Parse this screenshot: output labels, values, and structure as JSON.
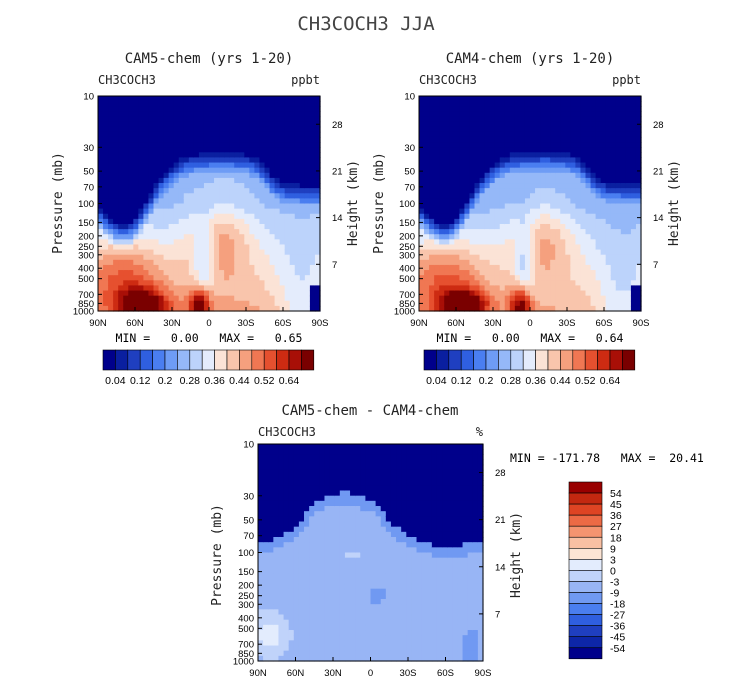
{
  "main_title": "CH3COCH3 JJA",
  "colors": {
    "abs_scale": [
      "#00008b",
      "#0a1fa0",
      "#1f3fc0",
      "#2f5fe0",
      "#4a7ef0",
      "#6e9cf5",
      "#95b8f8",
      "#bcd3fb",
      "#e4ecfc",
      "#fbe3d6",
      "#f9c5ac",
      "#f5a07e",
      "#f07753",
      "#e6502f",
      "#cd2b12",
      "#a80f07",
      "#7a0000"
    ],
    "diff_scale": [
      "#00008b",
      "#0d26a8",
      "#1f3fc0",
      "#2f5fe0",
      "#4a7ef0",
      "#7099f2",
      "#98b5f5",
      "#c0d3fa",
      "#e3ecfd",
      "#fce4d4",
      "#f9c0a3",
      "#f49470",
      "#ec6a45",
      "#de4423",
      "#c32810",
      "#990000"
    ]
  },
  "chart_data": [
    {
      "type": "heatmap",
      "name": "cam5",
      "title": "CAM5-chem (yrs 1-20)",
      "left_label": "CH3COCH3",
      "unit_label": "ppbt",
      "xlabel": "",
      "ylabel": "Pressure (mb)",
      "y2label": "Height (km)",
      "x_ticks": [
        "90N",
        "60N",
        "30N",
        "0",
        "30S",
        "60S",
        "90S"
      ],
      "x_range": [
        90,
        -90
      ],
      "y_ticks": [
        10,
        30,
        50,
        70,
        100,
        150,
        200,
        250,
        300,
        400,
        500,
        700,
        850,
        1000
      ],
      "y_range": [
        1000,
        10
      ],
      "height_ticks": [
        28,
        21,
        14,
        7
      ],
      "stats_label": "MIN =   0.00   MAX =   0.65",
      "min": 0.0,
      "max": 0.65,
      "colorbar_ticks": [
        "0.04",
        "0.12",
        "0.2",
        "0.28",
        "0.36",
        "0.44",
        "0.52",
        "0.64"
      ],
      "levels": [
        0.04,
        0.08,
        0.12,
        0.16,
        0.2,
        0.24,
        0.28,
        0.32,
        0.36,
        0.4,
        0.44,
        0.48,
        0.52,
        0.56,
        0.6,
        0.64
      ]
    },
    {
      "type": "heatmap",
      "name": "cam4",
      "title": "CAM4-chem (yrs 1-20)",
      "left_label": "CH3COCH3",
      "unit_label": "ppbt",
      "xlabel": "",
      "ylabel": "Pressure (mb)",
      "y2label": "Height (km)",
      "x_ticks": [
        "90N",
        "60N",
        "30N",
        "0",
        "30S",
        "60S",
        "90S"
      ],
      "x_range": [
        90,
        -90
      ],
      "y_ticks": [
        10,
        30,
        50,
        70,
        100,
        150,
        200,
        250,
        300,
        400,
        500,
        700,
        850,
        1000
      ],
      "y_range": [
        1000,
        10
      ],
      "height_ticks": [
        28,
        21,
        14,
        7
      ],
      "stats_label": "MIN =   0.00   MAX =   0.64",
      "min": 0.0,
      "max": 0.64,
      "colorbar_ticks": [
        "0.04",
        "0.12",
        "0.2",
        "0.28",
        "0.36",
        "0.44",
        "0.52",
        "0.64"
      ],
      "levels": [
        0.04,
        0.08,
        0.12,
        0.16,
        0.2,
        0.24,
        0.28,
        0.32,
        0.36,
        0.4,
        0.44,
        0.48,
        0.52,
        0.56,
        0.6,
        0.64
      ]
    },
    {
      "type": "heatmap",
      "name": "diff",
      "title": "CAM5-chem - CAM4-chem",
      "left_label": "CH3COCH3",
      "unit_label": "%",
      "xlabel": "",
      "ylabel": "Pressure (mb)",
      "y2label": "Height (km)",
      "x_ticks": [
        "90N",
        "60N",
        "30N",
        "0",
        "30S",
        "60S",
        "90S"
      ],
      "x_range": [
        90,
        -90
      ],
      "y_ticks": [
        10,
        30,
        50,
        70,
        100,
        150,
        200,
        250,
        300,
        400,
        500,
        700,
        850,
        1000
      ],
      "y_range": [
        1000,
        10
      ],
      "height_ticks": [
        28,
        21,
        14,
        7
      ],
      "stats_label": "MIN = -171.78   MAX =  20.41",
      "min": -171.78,
      "max": 20.41,
      "colorbar_ticks": [
        "54",
        "45",
        "36",
        "27",
        "18",
        "9",
        "3",
        "0",
        "-3",
        "-9",
        "-18",
        "-27",
        "-36",
        "-45",
        "-54"
      ],
      "levels": [
        -54,
        -45,
        -36,
        -27,
        -18,
        -9,
        -3,
        0,
        3,
        9,
        18,
        27,
        36,
        45,
        54
      ]
    }
  ]
}
